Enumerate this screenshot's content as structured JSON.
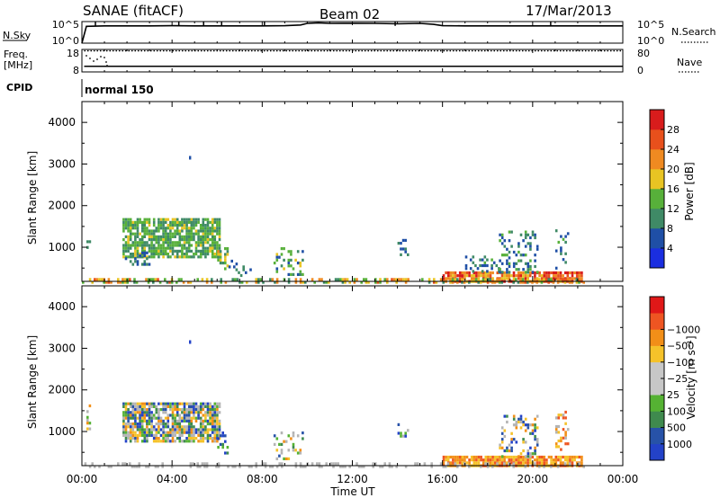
{
  "header": {
    "station": "SANAE (fitACF)",
    "beam": "Beam 02",
    "date": "17/Mar/2013"
  },
  "summary_panels": {
    "nsky": {
      "label": "N.Sky",
      "ticks": [
        "10^5",
        "10^0"
      ],
      "right_ticks": [
        "10^5",
        "10^0"
      ],
      "right_label": "N.Search"
    },
    "freq": {
      "label_top": "Freq.",
      "label_unit": "[MHz]",
      "ticks": [
        "18",
        "8"
      ],
      "right_ticks": [
        "80",
        "0"
      ],
      "right_label": "Nave"
    },
    "cpid": {
      "label": "CPID",
      "value": "normal 150"
    }
  },
  "colors": {
    "power": [
      "#1a2ee0",
      "#1f4fa6",
      "#3f8a66",
      "#57b03a",
      "#e8c423",
      "#ef8a21",
      "#e8501c",
      "#d81c1c"
    ],
    "velocity": [
      "#e01818",
      "#ee5522",
      "#f28f18",
      "#f5c22a",
      "#c7c7c7",
      "#c7c7c7",
      "#55b233",
      "#3f8a4e",
      "#2752a8",
      "#2342c8"
    ],
    "ground_scatter": "#b4b4b4",
    "curve": "#000000"
  },
  "chart_data": [
    {
      "type": "line",
      "name": "nsky_nsearch",
      "x_unit": "hours UT",
      "xlim": [
        0,
        24
      ],
      "x": [
        0,
        0.2,
        1,
        2,
        3,
        4,
        5,
        6,
        7,
        8,
        9,
        9.7,
        10,
        10.5,
        11,
        12,
        13,
        14,
        15,
        15.6,
        16,
        17,
        18,
        19,
        20,
        21,
        22,
        23,
        24
      ],
      "y_log10": [
        0.0,
        3.9,
        4.0,
        4.0,
        4.0,
        4.05,
        4.0,
        4.0,
        4.0,
        4.0,
        4.05,
        4.2,
        4.55,
        4.65,
        4.6,
        4.55,
        4.6,
        4.5,
        4.6,
        4.4,
        4.05,
        4.0,
        4.0,
        4.0,
        4.0,
        4.0,
        4.0,
        4.0,
        4.0
      ],
      "ylim_log10": [
        0,
        5
      ],
      "spikes_x": [
        0.6,
        4.3,
        5.4,
        6.2,
        8.1,
        13.9,
        20.8
      ]
    },
    {
      "type": "line",
      "name": "freq_nave",
      "x_unit": "hours UT",
      "xlim": [
        0,
        24
      ],
      "freq_mhz_x": [
        0.1,
        24
      ],
      "freq_mhz": [
        10.5,
        10.5
      ],
      "nave_top_x": [
        0.1,
        24
      ],
      "nave_top": [
        75,
        75
      ],
      "ylim_left": [
        8,
        18
      ],
      "ylim_right": [
        0,
        80
      ]
    },
    {
      "type": "heatmap",
      "name": "power",
      "xlabel": "",
      "ylabel": "Slant Range [km]",
      "xlim": [
        0,
        24
      ],
      "ylim": [
        180,
        4500
      ],
      "yticks": [
        1000,
        2000,
        3000,
        4000
      ],
      "colorbar": {
        "label": "Power [dB]",
        "ticks": [
          "4",
          "8",
          "12",
          "16",
          "20",
          "24",
          "28"
        ],
        "range": [
          0,
          30
        ]
      },
      "regions": [
        {
          "x": [
            0.2,
            0.4
          ],
          "y": [
            1000,
            1650
          ],
          "density": 0.25,
          "value": [
            6,
            10
          ]
        },
        {
          "x": [
            1.8,
            6.1
          ],
          "y": [
            800,
            1700
          ],
          "density": 0.8,
          "value": [
            8,
            16
          ]
        },
        {
          "x": [
            1.8,
            3.0
          ],
          "y": [
            600,
            900
          ],
          "density": 0.3,
          "value": [
            4,
            10
          ]
        },
        {
          "x": [
            6.0,
            6.5
          ],
          "y": [
            450,
            1000
          ],
          "density": 0.5,
          "value": [
            8,
            20
          ]
        },
        {
          "x": [
            6.5,
            7.5
          ],
          "y": [
            350,
            700
          ],
          "density": 0.15,
          "value": [
            4,
            10
          ]
        },
        {
          "x": [
            8.5,
            9.8
          ],
          "y": [
            350,
            1000
          ],
          "density": 0.25,
          "value": [
            4,
            16
          ]
        },
        {
          "x": [
            14.0,
            14.5
          ],
          "y": [
            800,
            1200
          ],
          "density": 0.3,
          "value": [
            4,
            10
          ]
        },
        {
          "x": [
            16.0,
            22.2
          ],
          "y": [
            180,
            420
          ],
          "density": 0.85,
          "value": [
            16,
            30
          ]
        },
        {
          "x": [
            17.0,
            18.5
          ],
          "y": [
            420,
            800
          ],
          "density": 0.3,
          "value": [
            4,
            12
          ]
        },
        {
          "x": [
            18.5,
            20.2
          ],
          "y": [
            420,
            1400
          ],
          "density": 0.3,
          "value": [
            4,
            14
          ]
        },
        {
          "x": [
            21.0,
            21.6
          ],
          "y": [
            500,
            1500
          ],
          "density": 0.25,
          "value": [
            4,
            12
          ]
        },
        {
          "x": [
            0.0,
            22.3
          ],
          "y": [
            180,
            260
          ],
          "density": 0.45,
          "value": [
            8,
            24
          ]
        }
      ],
      "points": [
        {
          "x": 4.8,
          "y": 3150,
          "value": 6
        }
      ]
    },
    {
      "type": "heatmap",
      "name": "velocity",
      "xlabel": "Time UT",
      "ylabel": "Slant Range [km]",
      "xlim": [
        0,
        24
      ],
      "ylim": [
        180,
        4500
      ],
      "yticks": [
        1000,
        2000,
        3000,
        4000
      ],
      "xticks": [
        "00:00",
        "04:00",
        "08:00",
        "12:00",
        "16:00",
        "20:00",
        "00:00"
      ],
      "colorbar": {
        "label": "Velocity [m s⁻¹]",
        "ticks": [
          "1000",
          "500",
          "100",
          "25",
          "−25",
          "−100",
          "−500",
          "−1000"
        ]
      },
      "regions": [
        {
          "x": [
            0.2,
            0.4
          ],
          "y": [
            1000,
            1650
          ],
          "density": 0.25,
          "category": [
            1,
            6
          ]
        },
        {
          "x": [
            1.8,
            6.1
          ],
          "y": [
            800,
            1700
          ],
          "density": 0.8,
          "category": [
            2,
            9
          ]
        },
        {
          "x": [
            6.0,
            6.5
          ],
          "y": [
            450,
            1000
          ],
          "density": 0.5,
          "category": [
            6,
            9
          ]
        },
        {
          "x": [
            8.5,
            9.8
          ],
          "y": [
            350,
            1000
          ],
          "density": 0.25,
          "category": [
            2,
            8
          ]
        },
        {
          "x": [
            14.0,
            14.5
          ],
          "y": [
            800,
            1200
          ],
          "density": 0.3,
          "category": [
            5,
            9
          ]
        },
        {
          "x": [
            16.0,
            22.2
          ],
          "y": [
            180,
            420
          ],
          "density": 0.85,
          "category": [
            1,
            3
          ]
        },
        {
          "x": [
            18.5,
            20.2
          ],
          "y": [
            420,
            1400
          ],
          "density": 0.3,
          "category": [
            2,
            9
          ]
        },
        {
          "x": [
            21.0,
            21.6
          ],
          "y": [
            500,
            1500
          ],
          "density": 0.25,
          "category": [
            1,
            4
          ]
        },
        {
          "x": [
            0.0,
            22.3
          ],
          "y": [
            180,
            260
          ],
          "density": 0.3,
          "category": [
            4,
            5
          ]
        }
      ],
      "points": [
        {
          "x": 4.8,
          "y": 3150,
          "category": 9
        }
      ]
    }
  ]
}
